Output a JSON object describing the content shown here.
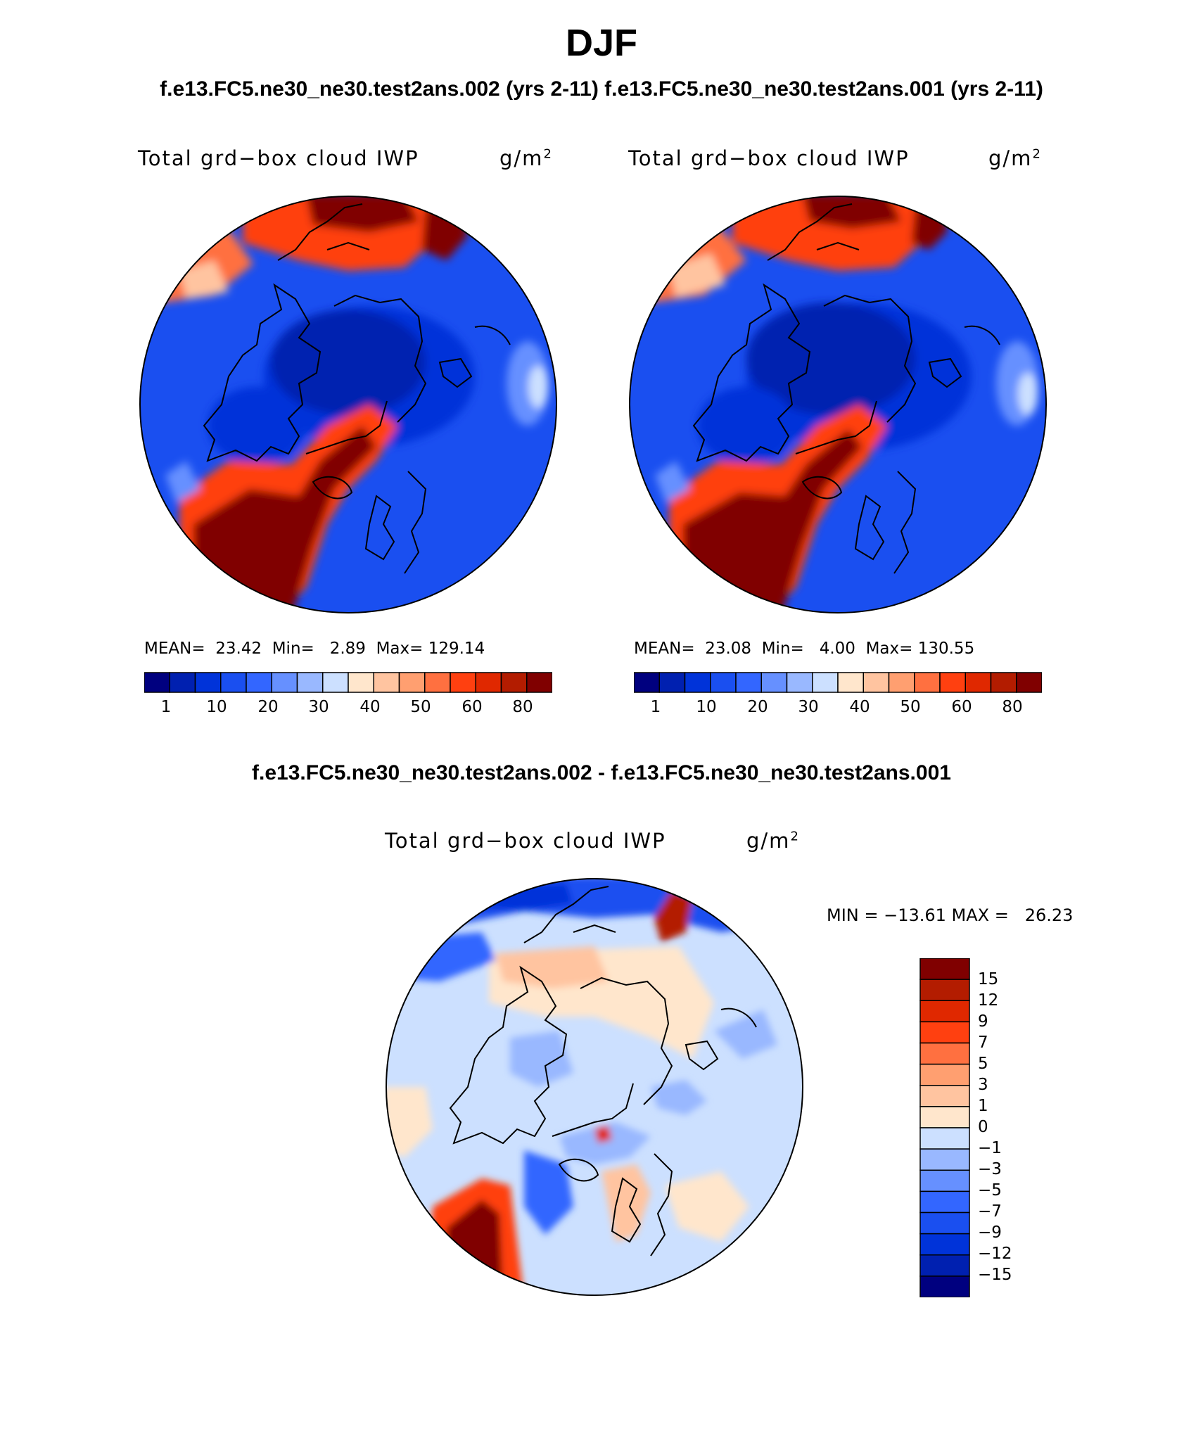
{
  "header": {
    "title": "DJF",
    "subtitle_left": "f.e13.FC5.ne30_ne30.test2ans.002 (yrs 2-11)",
    "subtitle_right": "f.e13.FC5.ne30_ne30.test2ans.001 (yrs 2-11)",
    "diff_title": "f.e13.FC5.ne30_ne30.test2ans.002 - f.e13.FC5.ne30_ne30.test2ans.001"
  },
  "chart_data": [
    {
      "type": "heatmap",
      "projection": "polar stereographic (north)",
      "title": "Total grd−box cloud IWP",
      "units": "g/m",
      "units_sup": "2",
      "stats": {
        "mean_label": "MEAN=",
        "mean": "23.42",
        "min_label": "Min=",
        "min": "2.89",
        "max_label": "Max=",
        "max": "129.14"
      },
      "colorbar_ticks": [
        "1",
        "10",
        "20",
        "30",
        "40",
        "50",
        "60",
        "80"
      ],
      "levels": [
        1,
        5,
        10,
        15,
        20,
        25,
        30,
        35,
        40,
        45,
        50,
        55,
        60,
        70,
        80
      ],
      "colors": [
        "#00007f",
        "#0020b0",
        "#0033d9",
        "#1a4ff0",
        "#3366ff",
        "#6690ff",
        "#99b8ff",
        "#cce0ff",
        "#ffe6cc",
        "#ffc4a0",
        "#ff9f70",
        "#ff7040",
        "#ff4010",
        "#e02800",
        "#b31c00",
        "#800000"
      ]
    },
    {
      "type": "heatmap",
      "projection": "polar stereographic (north)",
      "title": "Total grd−box cloud IWP",
      "units": "g/m",
      "units_sup": "2",
      "stats": {
        "mean_label": "MEAN=",
        "mean": "23.08",
        "min_label": "Min=",
        "min": "4.00",
        "max_label": "Max=",
        "max": "130.55"
      },
      "colorbar_ticks": [
        "1",
        "10",
        "20",
        "30",
        "40",
        "50",
        "60",
        "80"
      ],
      "levels": [
        1,
        5,
        10,
        15,
        20,
        25,
        30,
        35,
        40,
        45,
        50,
        55,
        60,
        70,
        80
      ],
      "colors": [
        "#00007f",
        "#0020b0",
        "#0033d9",
        "#1a4ff0",
        "#3366ff",
        "#6690ff",
        "#99b8ff",
        "#cce0ff",
        "#ffe6cc",
        "#ffc4a0",
        "#ff9f70",
        "#ff7040",
        "#ff4010",
        "#e02800",
        "#b31c00",
        "#800000"
      ]
    },
    {
      "type": "heatmap",
      "projection": "polar stereographic (north)",
      "title": "Total grd−box cloud IWP",
      "units": "g/m",
      "units_sup": "2",
      "minmax_text": "MIN = −13.61 MAX =   26.23",
      "colorbar_ticks": [
        "15",
        "12",
        "9",
        "7",
        "5",
        "3",
        "1",
        "0",
        "−1",
        "−3",
        "−5",
        "−7",
        "−9",
        "−12",
        "−15"
      ],
      "colors": [
        "#800000",
        "#b31c00",
        "#e02800",
        "#ff4010",
        "#ff7040",
        "#ff9f70",
        "#ffc4a0",
        "#ffe6cc",
        "#cce0ff",
        "#99b8ff",
        "#6690ff",
        "#3366ff",
        "#1a4ff0",
        "#0033d9",
        "#0020b0",
        "#00007f"
      ]
    }
  ]
}
